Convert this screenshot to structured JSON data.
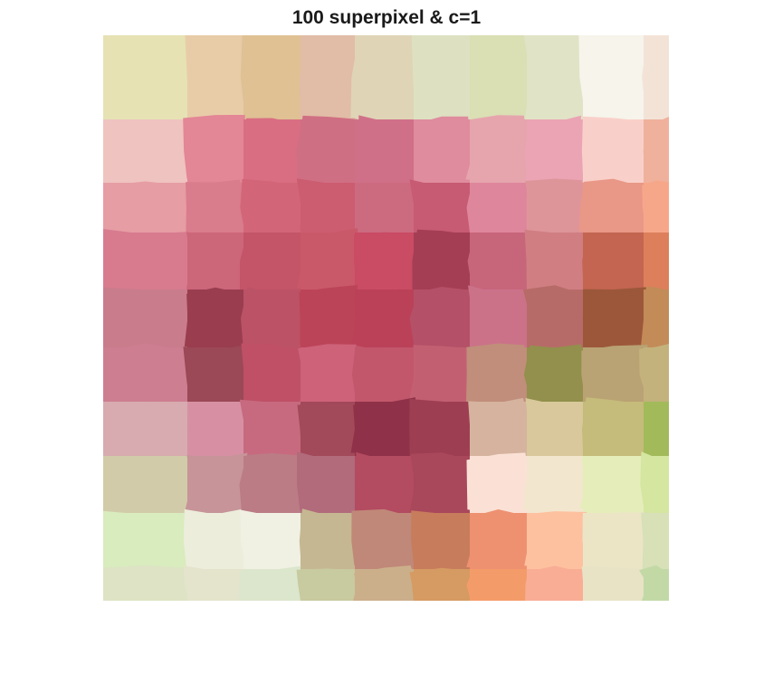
{
  "figure": {
    "title": "100 superpixel & c=1"
  },
  "image": {
    "kind": "superpixel-segmentation-mean-color",
    "superpixel_grid": {
      "rows": 10,
      "cols": 10
    },
    "mean_colors": [
      [
        "#e6e2b4",
        "#e8cca8",
        "#dfc194",
        "#e1bca6",
        "#dfd4b6",
        "#dde1c1",
        "#dadfb4",
        "#e0e3c5",
        "#f6f4eb",
        "#f3e3d7"
      ],
      [
        "#efc3bf",
        "#e38696",
        "#d96e82",
        "#cf6f83",
        "#d07088",
        "#df8c9e",
        "#e6a5ad",
        "#eba4b4",
        "#f9d0c9",
        "#f0b19c"
      ],
      [
        "#e69da4",
        "#d97c8c",
        "#d26678",
        "#cc5c70",
        "#cc6a80",
        "#c65b73",
        "#de869c",
        "#de959a",
        "#e99787",
        "#f7a789"
      ],
      [
        "#d87b8f",
        "#cc6679",
        "#c45468",
        "#c95969",
        "#c94b64",
        "#a43e55",
        "#c7657b",
        "#d07e82",
        "#c36550",
        "#dd7f5b"
      ],
      [
        "#c97c8c",
        "#993d4f",
        "#bc5266",
        "#bc4458",
        "#ba4158",
        "#b45067",
        "#cb7289",
        "#b76b68",
        "#9c573a",
        "#c28b58"
      ],
      [
        "#cd7e91",
        "#9b4857",
        "#bf5066",
        "#cd6279",
        "#c2576c",
        "#c26072",
        "#c08e7a",
        "#92904c",
        "#b9a273",
        "#c3b27c"
      ],
      [
        "#d7abaf",
        "#d790a3",
        "#c76a7f",
        "#a2495a",
        "#8f3249",
        "#9e3e52",
        "#d5b39f",
        "#d8c89b",
        "#c5bb7a",
        "#a3ba5a"
      ],
      [
        "#d2cba9",
        "#c69499",
        "#bb7c86",
        "#b16b7b",
        "#b34b61",
        "#a9475b",
        "#fbe1d5",
        "#f3e6cf",
        "#e5edbb",
        "#d4e69f"
      ],
      [
        "#d8ecbd",
        "#eceddb",
        "#f0f0e3",
        "#c5b791",
        "#c08878",
        "#c77c5c",
        "#ee9171",
        "#fdc19f",
        "#ebe5c6",
        "#d7e0b7"
      ],
      [
        "#dde3c4",
        "#e4e4cc",
        "#dbe6cc",
        "#c8ca9f",
        "#cbaf8b",
        "#d59b62",
        "#f49b6a",
        "#f9ad95",
        "#e8e3c5",
        "#c2d9a6"
      ]
    ]
  }
}
